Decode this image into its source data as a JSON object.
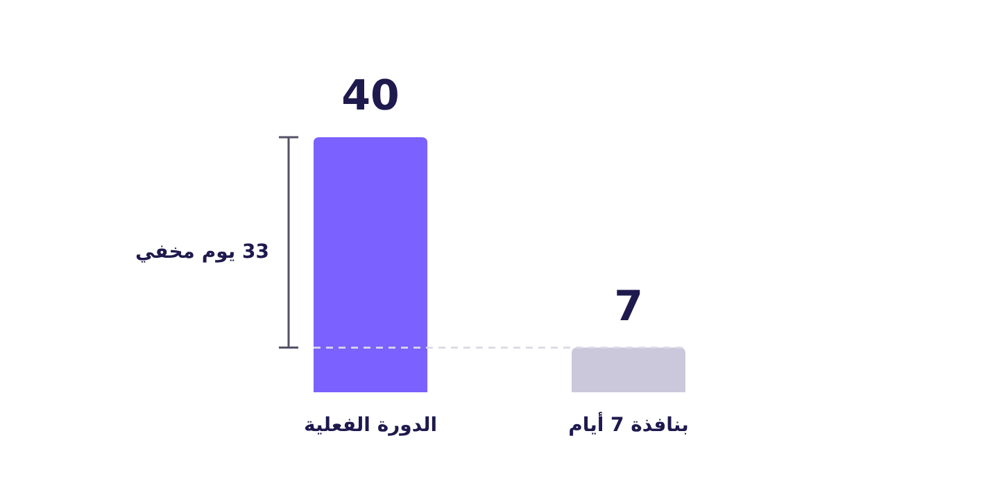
{
  "chart_data": {
    "type": "bar",
    "categories": [
      "الدورة الفعلية",
      "بنافذة 7 أيام"
    ],
    "values": [
      40,
      7
    ],
    "colors": [
      "#7b61ff",
      "#cbc8dc"
    ],
    "data_labels": true,
    "ref_lines": [
      {
        "axis": "y",
        "value": 7,
        "color": "#d9d9e3",
        "line_style": "dashed"
      }
    ],
    "annotations": [
      "33 يوم مخفي"
    ]
  }
}
